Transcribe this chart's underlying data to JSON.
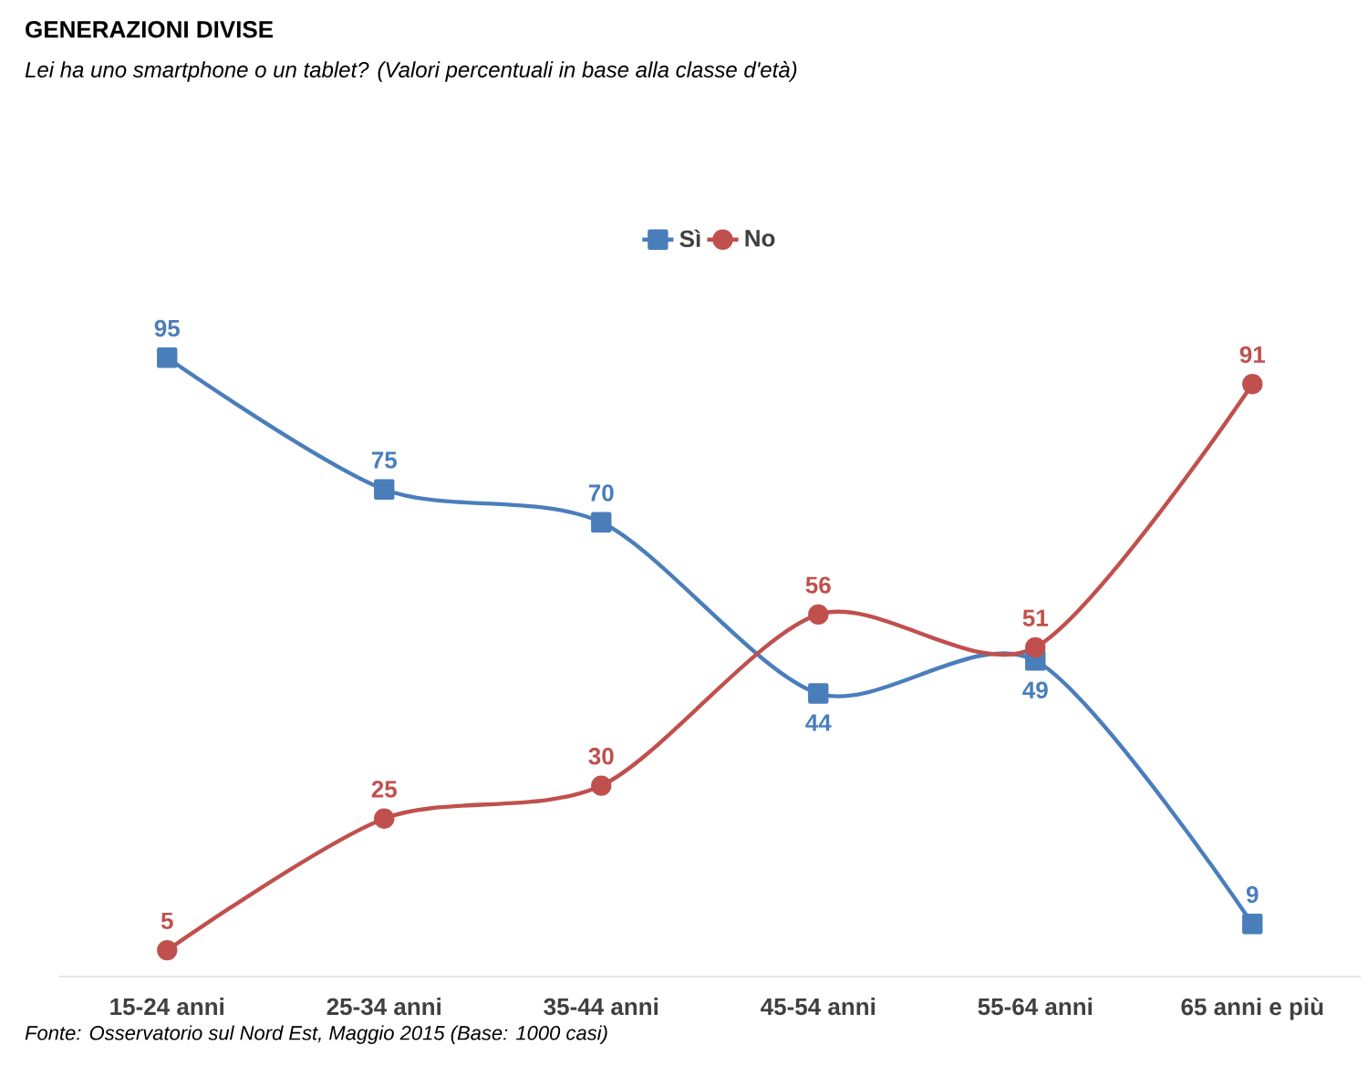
{
  "chart_data": {
    "type": "line",
    "title": "GENERAZIONI DIVISE",
    "subtitle": "Lei ha uno smartphone o un tablet? (Valori percentuali in base alla classe d'età)",
    "categories": [
      "15-24 anni",
      "25-34 anni",
      "35-44 anni",
      "45-54 anni",
      "55-64 anni",
      "65 anni e più"
    ],
    "series": [
      {
        "name": "Sì",
        "color": "#4a7ebb",
        "marker": "square",
        "values": [
          95,
          75,
          70,
          44,
          49,
          9
        ]
      },
      {
        "name": "No",
        "color": "#c0504d",
        "marker": "circle",
        "values": [
          5,
          25,
          30,
          56,
          51,
          91
        ]
      }
    ],
    "data_labels": true,
    "legend": "top",
    "annotations": [
      "Fonte: Osservatorio sul Nord Est, Maggio 2015 (Base: 1000 casi)"
    ]
  }
}
